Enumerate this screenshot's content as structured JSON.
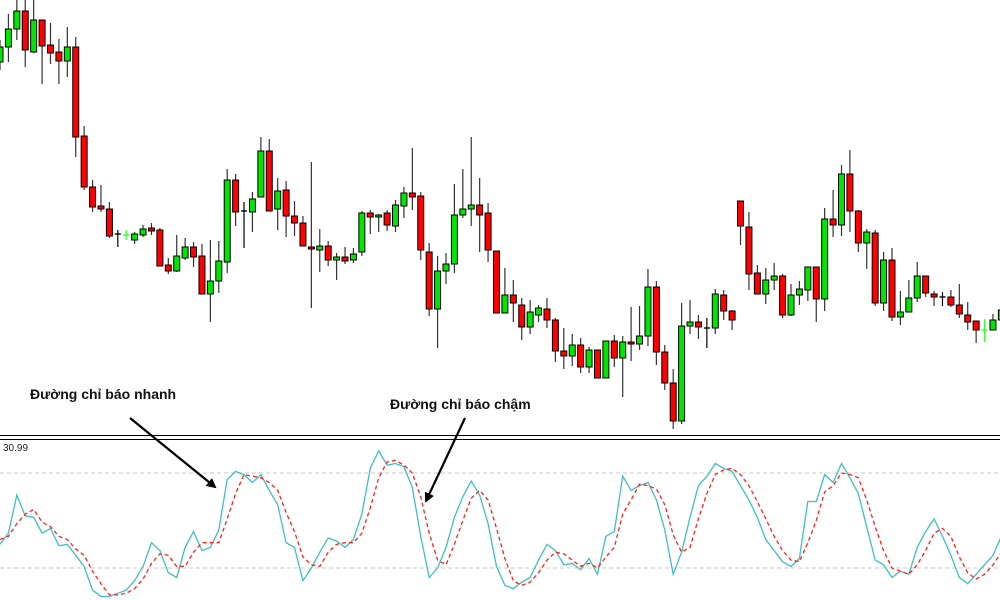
{
  "annotations": {
    "fast_line_label": "Đường chỉ báo nhanh",
    "slow_line_label": "Đường chỉ báo chậm"
  },
  "indicator_panel": {
    "scale_label": "30.99"
  },
  "colors": {
    "bull": "#00e600",
    "bear": "#ff0000",
    "doji_bull": "#33ff33",
    "outline": "#000000",
    "fast_line": "#3fbfbf",
    "slow_line": "#ff2020",
    "level_line": "#c8c8c8"
  },
  "chart_data": [
    {
      "type": "candlestick",
      "title": "",
      "grid": false,
      "ohlc_fields": [
        "open",
        "high",
        "low",
        "close"
      ],
      "candles": [
        [
          538,
          560,
          530,
          553
        ],
        [
          553,
          586,
          538,
          571
        ],
        [
          571,
          600,
          560,
          589
        ],
        [
          589,
          600,
          533,
          550
        ],
        [
          548,
          600,
          547,
          580
        ],
        [
          580,
          580,
          516,
          554
        ],
        [
          555,
          577,
          536,
          547
        ],
        [
          548,
          561,
          516,
          539
        ],
        [
          539,
          573,
          523,
          553
        ],
        [
          553,
          563,
          443,
          463
        ],
        [
          464,
          474,
          410,
          413
        ],
        [
          413,
          420,
          388,
          393
        ],
        [
          394,
          415,
          388,
          391
        ],
        [
          391,
          398,
          362,
          364
        ],
        [
          366,
          370,
          353,
          366
        ],
        [
          365,
          370,
          360,
          365.2
        ],
        [
          360,
          368,
          356,
          366
        ],
        [
          365,
          375,
          363,
          371
        ],
        [
          372,
          377,
          365,
          369
        ],
        [
          370,
          372,
          334,
          334
        ],
        [
          335,
          342,
          326,
          329
        ],
        [
          329,
          365,
          328,
          344
        ],
        [
          342,
          362,
          340,
          353
        ],
        [
          353,
          358,
          333,
          343
        ],
        [
          344,
          356,
          306,
          306
        ],
        [
          306,
          360,
          278,
          319
        ],
        [
          319,
          359,
          307,
          339
        ],
        [
          338,
          431,
          327,
          420
        ],
        [
          420,
          426,
          374,
          388
        ],
        [
          389,
          398,
          352,
          389
        ],
        [
          388,
          408,
          368,
          401
        ],
        [
          403,
          463,
          403,
          449
        ],
        [
          449,
          461,
          389,
          389
        ],
        [
          391,
          422,
          370,
          409
        ],
        [
          410,
          419,
          363,
          384
        ],
        [
          384,
          399,
          364,
          377
        ],
        [
          377,
          384,
          354,
          354
        ],
        [
          353,
          438,
          292,
          351
        ],
        [
          350,
          371,
          328,
          354
        ],
        [
          354,
          359,
          334,
          340
        ],
        [
          340,
          347,
          320,
          343
        ],
        [
          343,
          353,
          336,
          339
        ],
        [
          340,
          352,
          337,
          346
        ],
        [
          348,
          389,
          344,
          387
        ],
        [
          387,
          390,
          366,
          383
        ],
        [
          383,
          386,
          368,
          385
        ],
        [
          387,
          390,
          369,
          375
        ],
        [
          374,
          400,
          368,
          395
        ],
        [
          394,
          413,
          382,
          407
        ],
        [
          407,
          452,
          390,
          403
        ],
        [
          404,
          408,
          340,
          350
        ],
        [
          348,
          357,
          284,
          291
        ],
        [
          291,
          344,
          252,
          329
        ],
        [
          329,
          347,
          316,
          336
        ],
        [
          336,
          416,
          327,
          385
        ],
        [
          385,
          431,
          382,
          391
        ],
        [
          391,
          463,
          374,
          395
        ],
        [
          395,
          422,
          348,
          385
        ],
        [
          387,
          397,
          338,
          350
        ],
        [
          349,
          349,
          287,
          287
        ],
        [
          287,
          332,
          287,
          305
        ],
        [
          305,
          320,
          278,
          297
        ],
        [
          295,
          302,
          260,
          273
        ],
        [
          273,
          300,
          266,
          288
        ],
        [
          285,
          295,
          278,
          292
        ],
        [
          291,
          302,
          272,
          280
        ],
        [
          280,
          282,
          238,
          249
        ],
        [
          249,
          272,
          231,
          244
        ],
        [
          244,
          266,
          234,
          255
        ],
        [
          255,
          262,
          227,
          233
        ],
        [
          233,
          253,
          227,
          250
        ],
        [
          250,
          250,
          222,
          222
        ],
        [
          222,
          259,
          222,
          259
        ],
        [
          259,
          265,
          233,
          242
        ],
        [
          242,
          264,
          203,
          258
        ],
        [
          258,
          293,
          239,
          256
        ],
        [
          256,
          294,
          250,
          264
        ],
        [
          264,
          331,
          254,
          313
        ],
        [
          313,
          319,
          235,
          248
        ],
        [
          248,
          255,
          210,
          217
        ],
        [
          217,
          231,
          171,
          179
        ],
        [
          179,
          297,
          176,
          274
        ],
        [
          274,
          300,
          266,
          278
        ],
        [
          278,
          285,
          261,
          273
        ],
        [
          272,
          282,
          252,
          272
        ],
        [
          272,
          311,
          266,
          306
        ],
        [
          305,
          310,
          280,
          289
        ],
        [
          289,
          290,
          270,
          280
        ],
        [
          399,
          399,
          355,
          374
        ],
        [
          373,
          388,
          310,
          326
        ],
        [
          327,
          335,
          306,
          306
        ],
        [
          306,
          332,
          296,
          320
        ],
        [
          320,
          337,
          310,
          324
        ],
        [
          324,
          326,
          282,
          285
        ],
        [
          285,
          316,
          284,
          305
        ],
        [
          305,
          319,
          295,
          311
        ],
        [
          310,
          333,
          299,
          333
        ],
        [
          333,
          333,
          278,
          301
        ],
        [
          301,
          392,
          289,
          381
        ],
        [
          381,
          410,
          363,
          375
        ],
        [
          375,
          435,
          364,
          426
        ],
        [
          426,
          450,
          368,
          389
        ],
        [
          389,
          390,
          348,
          357
        ],
        [
          357,
          371,
          331,
          368
        ],
        [
          367,
          370,
          294,
          297
        ],
        [
          297,
          348,
          289,
          340
        ],
        [
          340,
          352,
          279,
          283
        ],
        [
          283,
          309,
          275,
          288
        ],
        [
          288,
          320,
          288,
          302
        ],
        [
          302,
          338,
          298,
          324
        ],
        [
          324,
          324,
          303,
          307
        ],
        [
          306,
          309,
          294,
          303
        ],
        [
          303,
          308,
          294,
          303
        ],
        [
          303,
          310,
          293,
          295
        ],
        [
          295,
          316,
          282,
          286
        ],
        [
          285,
          298,
          270,
          278
        ],
        [
          279,
          279,
          257,
          270
        ],
        [
          270,
          281,
          258,
          270.2
        ],
        [
          270,
          286,
          270,
          280
        ],
        [
          280,
          292,
          278,
          290
        ]
      ]
    },
    {
      "type": "line",
      "title": "",
      "ylim": [
        0,
        100
      ],
      "levels": [
        80,
        20
      ],
      "grid": false,
      "series": [
        {
          "style": "solid",
          "values": [
            35,
            42,
            66,
            53,
            52,
            42,
            45,
            34,
            35,
            28,
            21,
            6,
            2,
            2,
            4,
            6,
            12,
            21,
            36,
            31,
            17,
            14,
            33,
            43,
            31,
            33,
            44,
            76,
            81,
            79,
            74,
            79,
            69,
            60,
            36,
            33,
            12,
            20,
            30,
            39,
            37,
            33,
            38,
            54,
            83,
            94,
            85,
            86,
            84,
            71,
            40,
            14,
            20,
            33,
            52,
            65,
            75,
            66,
            48,
            21,
            9,
            7,
            11,
            14,
            25,
            35,
            31,
            22,
            23,
            19,
            26,
            16,
            40,
            43,
            78,
            69,
            72,
            74,
            63,
            44,
            16,
            30,
            52,
            72,
            78,
            86,
            83,
            81,
            72,
            63,
            52,
            38,
            31,
            24,
            21,
            26,
            62,
            62,
            79,
            74,
            86,
            77,
            67,
            46,
            25,
            22,
            14,
            18,
            16,
            33,
            43,
            51,
            40,
            28,
            14,
            10,
            16,
            22,
            28,
            40
          ]
        },
        {
          "style": "dashed",
          "values": [
            38,
            40,
            48,
            54,
            57,
            49,
            46,
            40,
            38,
            32,
            28,
            18,
            10,
            3,
            3,
            4,
            7,
            13,
            23,
            29,
            28,
            21,
            21,
            30,
            36,
            36,
            36,
            51,
            67,
            79,
            78,
            77,
            74,
            69,
            55,
            43,
            27,
            22,
            21,
            30,
            35,
            36,
            36,
            42,
            58,
            77,
            87,
            88,
            85,
            80,
            65,
            42,
            25,
            22,
            35,
            50,
            64,
            69,
            63,
            45,
            26,
            12,
            9,
            11,
            17,
            25,
            30,
            29,
            25,
            21,
            23,
            20,
            27,
            33,
            54,
            63,
            73,
            72,
            70,
            60,
            41,
            30,
            33,
            51,
            67,
            79,
            82,
            83,
            79,
            72,
            62,
            51,
            40,
            31,
            25,
            24,
            36,
            50,
            68,
            72,
            80,
            79,
            77,
            63,
            46,
            31,
            20,
            18,
            16,
            22,
            31,
            42,
            45,
            40,
            27,
            17,
            13,
            16,
            22,
            30
          ]
        }
      ]
    }
  ]
}
